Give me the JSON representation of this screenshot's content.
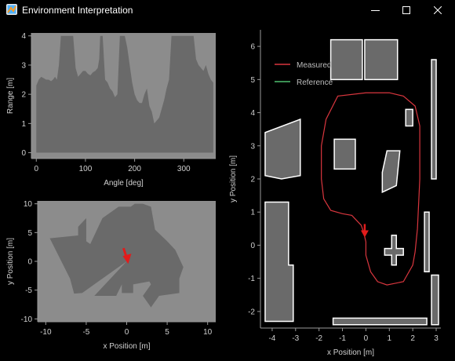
{
  "window": {
    "title": "Environment Interpretation",
    "icons": [
      "app-icon",
      "minimize-icon",
      "maximize-icon",
      "close-icon"
    ]
  },
  "colors": {
    "background": "#000000",
    "plot_area": "#8c8c8c",
    "data_fill": "#6a6a6a",
    "axis": "#9a9a9a",
    "measured_path": "#d9363e",
    "reference_path": "#4fbf6f",
    "arrow": "#e31b1b",
    "obstacle_edge": "#ffffff"
  },
  "chart_data": [
    {
      "type": "area",
      "title": "",
      "xlabel": "Angle [deg]",
      "ylabel": "Range [m]",
      "xlim": [
        -10,
        365
      ],
      "ylim": [
        -0.2,
        4.1
      ],
      "xticks": [
        0,
        100,
        200,
        300
      ],
      "yticks": [
        0,
        1,
        2,
        3,
        4
      ],
      "grid": false,
      "series": [
        {
          "x": [
            0,
            5,
            10,
            15,
            20,
            25,
            30,
            34,
            38,
            42,
            46,
            50,
            55,
            60,
            65,
            70,
            75,
            80,
            85,
            90,
            95,
            100,
            105,
            110,
            115,
            120,
            125,
            128,
            130,
            135,
            140,
            145,
            150,
            155,
            160,
            165,
            170,
            175,
            180,
            185,
            190,
            195,
            200,
            205,
            210,
            215,
            220,
            225,
            230,
            235,
            240,
            245,
            250,
            255,
            260,
            265,
            270,
            275,
            280,
            285,
            290,
            295,
            300,
            305,
            310,
            315,
            320,
            325,
            330,
            335,
            340,
            345,
            350,
            355,
            360
          ],
          "y": [
            2.3,
            2.5,
            2.6,
            2.55,
            2.5,
            2.5,
            2.45,
            2.5,
            2.6,
            2.5,
            3.0,
            4.0,
            4.0,
            4.0,
            4.0,
            4.0,
            4.0,
            2.9,
            2.6,
            2.7,
            2.8,
            2.8,
            2.7,
            2.65,
            2.75,
            2.8,
            2.9,
            3.2,
            4.0,
            4.0,
            2.5,
            2.4,
            2.2,
            2.1,
            1.9,
            2.0,
            4.0,
            4.0,
            4.0,
            3.6,
            3.0,
            2.4,
            2.0,
            1.8,
            1.7,
            1.7,
            2.0,
            2.2,
            1.6,
            1.4,
            1.0,
            1.1,
            1.2,
            1.5,
            1.8,
            2.2,
            2.5,
            4.0,
            4.0,
            4.0,
            4.0,
            4.0,
            4.0,
            4.0,
            4.0,
            4.0,
            4.0,
            3.2,
            3.0,
            2.9,
            2.8,
            3.0,
            2.7,
            2.5,
            2.4
          ]
        }
      ]
    },
    {
      "type": "area",
      "title": "",
      "xlabel": "x Position [m]",
      "ylabel": "y Position [m]",
      "xlim": [
        -11,
        11
      ],
      "ylim": [
        -10.5,
        10.5
      ],
      "xticks": [
        -10,
        -5,
        0,
        5,
        10
      ],
      "yticks": [
        -10,
        -5,
        0,
        5,
        10
      ],
      "grid": false,
      "series": [
        {
          "x": [
            0,
            -5.5,
            -6.5,
            -7,
            -9.5,
            -6,
            -6,
            -5,
            -5,
            -4.5,
            -3,
            -1,
            0.5,
            1,
            2,
            3,
            3.5,
            5,
            6,
            7,
            6.5,
            6.5,
            4,
            3,
            2,
            3,
            2.8,
            0.8,
            0.8,
            -0.6,
            -0.6,
            -1.3,
            -4
          ],
          "y": [
            0,
            -5.5,
            -5.6,
            -3,
            4,
            4.5,
            6,
            7.5,
            3.5,
            3,
            7.5,
            9.5,
            9.5,
            10,
            10,
            9.5,
            5.5,
            3.5,
            2,
            -1,
            -3,
            -5.5,
            -6,
            -8,
            -6,
            -4,
            -3.5,
            -4,
            -5.5,
            -5.5,
            -4,
            -6,
            -6
          ]
        }
      ]
    },
    {
      "type": "line",
      "title": "",
      "xlabel": "x Position [m]",
      "ylabel": "y Position [m]",
      "xlim": [
        -4.5,
        3.2
      ],
      "ylim": [
        -2.5,
        6.5
      ],
      "xticks": [
        -4,
        -3,
        -2,
        -1,
        0,
        1,
        2,
        3
      ],
      "yticks": [
        -2,
        -1,
        0,
        1,
        2,
        3,
        4,
        5,
        6
      ],
      "grid": false,
      "legend": {
        "placement": "top-left",
        "entries": [
          "Measured",
          "Reference"
        ]
      },
      "series": [
        {
          "name": "Measured",
          "color": "#d9363e",
          "x": [
            -0.1,
            -0.2,
            -0.6,
            -1.0,
            -1.5,
            -1.8,
            -1.9,
            -1.9,
            -1.7,
            -1.2,
            0.0,
            1.0,
            1.6,
            2.1,
            2.3,
            2.3,
            2.2,
            2.1,
            2.0,
            1.6,
            0.9,
            0.5,
            0.2,
            0.0,
            0.0,
            -0.1
          ],
          "y": [
            0.4,
            0.6,
            0.9,
            0.95,
            1.05,
            1.4,
            2.0,
            3.0,
            3.8,
            4.5,
            4.6,
            4.6,
            4.5,
            4.2,
            3.6,
            2.0,
            0.5,
            -0.2,
            -0.6,
            -1.1,
            -1.2,
            -1.1,
            -0.8,
            -0.3,
            0.1,
            0.4
          ]
        },
        {
          "name": "Reference",
          "color": "#4fbf6f",
          "x": [],
          "y": []
        }
      ]
    }
  ]
}
